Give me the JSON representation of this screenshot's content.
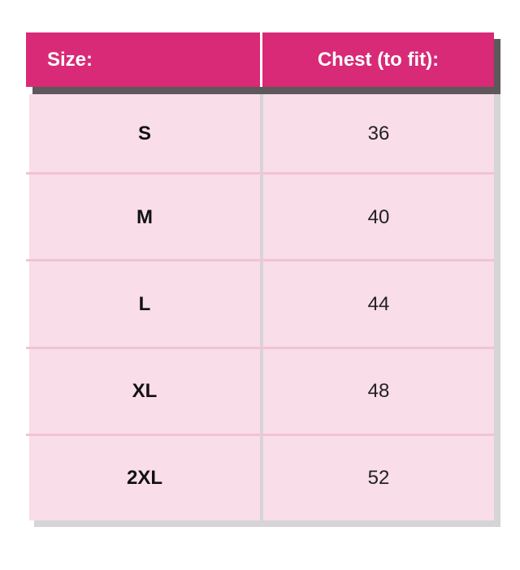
{
  "colors": {
    "header": "#d82a76",
    "row": "#f9dde9",
    "shadow": "#5d585b"
  },
  "table": {
    "headers": [
      "Size:",
      "Chest (to fit):"
    ],
    "rows": [
      {
        "size": "S",
        "chest": "36"
      },
      {
        "size": "M",
        "chest": "40"
      },
      {
        "size": "L",
        "chest": "44"
      },
      {
        "size": "XL",
        "chest": "48"
      },
      {
        "size": "2XL",
        "chest": "52"
      }
    ]
  }
}
